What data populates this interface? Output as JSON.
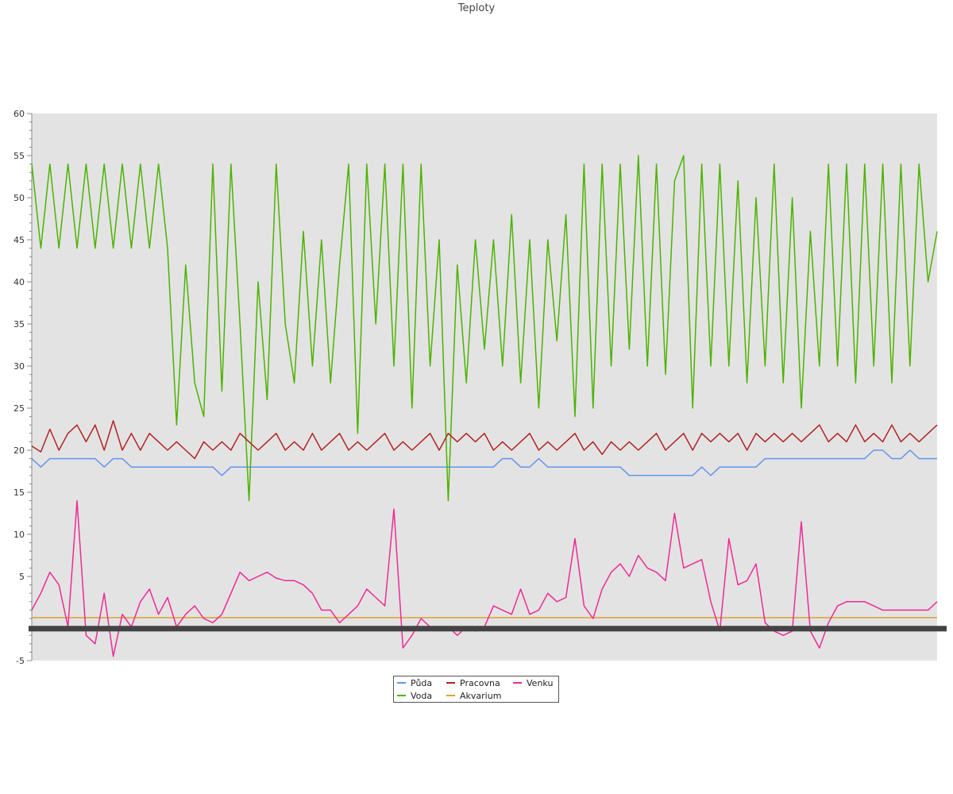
{
  "colors": {
    "plot_bg": "#e3e3e3",
    "axis": "#888888",
    "tick_text": "#333333",
    "band": "#444444"
  },
  "chart_data": {
    "type": "line",
    "title": "Teploty",
    "xlabel": "",
    "ylabel": "",
    "ylim": [
      -5,
      60
    ],
    "y_ticks": [
      -5,
      5,
      10,
      15,
      20,
      25,
      30,
      35,
      40,
      45,
      50,
      55,
      60
    ],
    "grid": false,
    "legend_position": "bottom-center",
    "band_at": -1.2,
    "x_note": "x values are sample indices 0-100 across the plot (no x tick labels shown)",
    "series": [
      {
        "name": "Půda",
        "color": "#6495ed",
        "x": [
          0,
          1,
          2,
          3,
          4,
          5,
          6,
          7,
          8,
          9,
          10,
          11,
          12,
          13,
          14,
          15,
          16,
          17,
          18,
          19,
          20,
          21,
          22,
          23,
          24,
          25,
          26,
          27,
          28,
          29,
          30,
          31,
          32,
          33,
          34,
          35,
          36,
          37,
          38,
          39,
          40,
          41,
          42,
          43,
          44,
          45,
          46,
          47,
          48,
          49,
          50,
          51,
          52,
          53,
          54,
          55,
          56,
          57,
          58,
          59,
          60,
          61,
          62,
          63,
          64,
          65,
          66,
          67,
          68,
          69,
          70,
          71,
          72,
          73,
          74,
          75,
          76,
          77,
          78,
          79,
          80,
          81,
          82,
          83,
          84,
          85,
          86,
          87,
          88,
          89,
          90,
          91,
          92,
          93,
          94,
          95,
          96,
          97,
          98,
          99,
          100
        ],
        "values": [
          19,
          18,
          19,
          19,
          19,
          19,
          19,
          19,
          18,
          19,
          19,
          18,
          18,
          18,
          18,
          18,
          18,
          18,
          18,
          18,
          18,
          17,
          18,
          18,
          18,
          18,
          18,
          18,
          18,
          18,
          18,
          18,
          18,
          18,
          18,
          18,
          18,
          18,
          18,
          18,
          18,
          18,
          18,
          18,
          18,
          18,
          18,
          18,
          18,
          18,
          18,
          18,
          19,
          19,
          18,
          18,
          19,
          18,
          18,
          18,
          18,
          18,
          18,
          18,
          18,
          18,
          17,
          17,
          17,
          17,
          17,
          17,
          17,
          17,
          18,
          17,
          18,
          18,
          18,
          18,
          18,
          19,
          19,
          19,
          19,
          19,
          19,
          19,
          19,
          19,
          19,
          19,
          19,
          20,
          20,
          19,
          19,
          20,
          19,
          19,
          19
        ]
      },
      {
        "name": "Voda",
        "color": "#4cb300",
        "x": [
          0,
          1,
          2,
          3,
          4,
          5,
          6,
          7,
          8,
          9,
          10,
          11,
          12,
          13,
          14,
          15,
          16,
          17,
          18,
          19,
          20,
          21,
          22,
          23,
          24,
          25,
          26,
          27,
          28,
          29,
          30,
          31,
          32,
          33,
          34,
          35,
          36,
          37,
          38,
          39,
          40,
          41,
          42,
          43,
          44,
          45,
          46,
          47,
          48,
          49,
          50,
          51,
          52,
          53,
          54,
          55,
          56,
          57,
          58,
          59,
          60,
          61,
          62,
          63,
          64,
          65,
          66,
          67,
          68,
          69,
          70,
          71,
          72,
          73,
          74,
          75,
          76,
          77,
          78,
          79,
          80,
          81,
          82,
          83,
          84,
          85,
          86,
          87,
          88,
          89,
          90,
          91,
          92,
          93,
          94,
          95,
          96,
          97,
          98,
          99,
          100
        ],
        "values": [
          54,
          44,
          54,
          44,
          54,
          44,
          54,
          44,
          54,
          44,
          54,
          44,
          54,
          44,
          54,
          44,
          23,
          42,
          28,
          24,
          54,
          27,
          54,
          35,
          14,
          40,
          26,
          54,
          35,
          28,
          46,
          30,
          45,
          28,
          42,
          54,
          22,
          54,
          35,
          54,
          30,
          54,
          25,
          54,
          30,
          45,
          14,
          42,
          28,
          45,
          32,
          45,
          30,
          48,
          28,
          45,
          25,
          45,
          33,
          48,
          24,
          54,
          25,
          54,
          30,
          54,
          32,
          55,
          30,
          54,
          29,
          52,
          55,
          25,
          54,
          30,
          54,
          30,
          52,
          28,
          50,
          30,
          54,
          28,
          50,
          25,
          46,
          30,
          54,
          30,
          54,
          28,
          54,
          30,
          54,
          28,
          54,
          30,
          54,
          40,
          46
        ]
      },
      {
        "name": "Pracovna",
        "color": "#b22222",
        "x": [
          0,
          1,
          2,
          3,
          4,
          5,
          6,
          7,
          8,
          9,
          10,
          11,
          12,
          13,
          14,
          15,
          16,
          17,
          18,
          19,
          20,
          21,
          22,
          23,
          24,
          25,
          26,
          27,
          28,
          29,
          30,
          31,
          32,
          33,
          34,
          35,
          36,
          37,
          38,
          39,
          40,
          41,
          42,
          43,
          44,
          45,
          46,
          47,
          48,
          49,
          50,
          51,
          52,
          53,
          54,
          55,
          56,
          57,
          58,
          59,
          60,
          61,
          62,
          63,
          64,
          65,
          66,
          67,
          68,
          69,
          70,
          71,
          72,
          73,
          74,
          75,
          76,
          77,
          78,
          79,
          80,
          81,
          82,
          83,
          84,
          85,
          86,
          87,
          88,
          89,
          90,
          91,
          92,
          93,
          94,
          95,
          96,
          97,
          98,
          99,
          100
        ],
        "values": [
          20.5,
          19.8,
          22.5,
          20,
          22,
          23,
          21,
          23,
          20,
          23.5,
          20,
          22,
          20,
          22,
          21,
          20,
          21,
          20,
          19,
          21,
          20,
          21,
          20,
          22,
          21,
          20,
          21,
          22,
          20,
          21,
          20,
          22,
          20,
          21,
          22,
          20,
          21,
          20,
          21,
          22,
          20,
          21,
          20,
          21,
          22,
          20,
          22,
          21,
          22,
          21,
          22,
          20,
          21,
          20,
          21,
          22,
          20,
          21,
          20,
          21,
          22,
          20,
          21,
          19.5,
          21,
          20,
          21,
          20,
          21,
          22,
          20,
          21,
          22,
          20,
          22,
          21,
          22,
          21,
          22,
          20,
          22,
          21,
          22,
          21,
          22,
          21,
          22,
          23,
          21,
          22,
          21,
          23,
          21,
          22,
          21,
          23,
          21,
          22,
          21,
          22,
          23
        ]
      },
      {
        "name": "Akvarium",
        "color": "#e0a030",
        "x": [
          0,
          100
        ],
        "values": [
          0.1,
          0.1
        ]
      },
      {
        "name": "Venku",
        "color": "#ee2a98",
        "x": [
          0,
          1,
          2,
          3,
          4,
          5,
          6,
          7,
          8,
          9,
          10,
          11,
          12,
          13,
          14,
          15,
          16,
          17,
          18,
          19,
          20,
          21,
          22,
          23,
          24,
          25,
          26,
          27,
          28,
          29,
          30,
          31,
          32,
          33,
          34,
          35,
          36,
          37,
          38,
          39,
          40,
          41,
          42,
          43,
          44,
          45,
          46,
          47,
          48,
          49,
          50,
          51,
          52,
          53,
          54,
          55,
          56,
          57,
          58,
          59,
          60,
          61,
          62,
          63,
          64,
          65,
          66,
          67,
          68,
          69,
          70,
          71,
          72,
          73,
          74,
          75,
          76,
          77,
          78,
          79,
          80,
          81,
          82,
          83,
          84,
          85,
          86,
          87,
          88,
          89,
          90,
          91,
          92,
          93,
          94,
          95,
          96,
          97,
          98,
          99,
          100
        ],
        "values": [
          1,
          3,
          5.5,
          4,
          -1,
          14,
          -2,
          -3,
          3,
          -4.5,
          0.5,
          -1,
          2,
          3.5,
          0.5,
          2.5,
          -1,
          0.5,
          1.5,
          0,
          -0.5,
          0.5,
          3,
          5.5,
          4.5,
          5,
          5.5,
          4.8,
          4.5,
          4.5,
          4,
          3,
          1,
          1,
          -0.5,
          0.5,
          1.5,
          3.5,
          2.5,
          1.5,
          13,
          -3.5,
          -2,
          0,
          -1,
          -1,
          -1,
          -2,
          -1,
          -1.5,
          -1,
          1.5,
          1,
          0.5,
          3.5,
          0.5,
          1,
          3,
          2,
          2.5,
          9.5,
          1.5,
          0,
          3.5,
          5.5,
          6.5,
          5,
          7.5,
          6,
          5.5,
          4.5,
          12.5,
          6,
          6.5,
          7,
          2,
          -1.5,
          9.5,
          4,
          4.5,
          6.5,
          -0.5,
          -1.5,
          -2,
          -1.5,
          11.5,
          -1.5,
          -3.5,
          -0.5,
          1.5,
          2,
          2,
          2,
          1.5,
          1,
          1,
          1,
          1,
          1,
          1,
          2
        ]
      }
    ]
  }
}
